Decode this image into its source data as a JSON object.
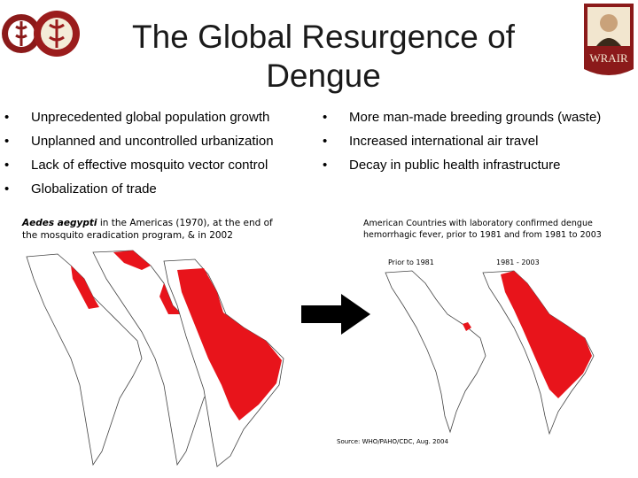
{
  "slide": {
    "title": "The Global Resurgence of Dengue",
    "logo_right_text": "WRAIR"
  },
  "bullets_left": [
    "Unprecedented global population growth",
    "Unplanned and uncontrolled urbanization",
    "Lack of effective mosquito vector control",
    "Globalization of trade"
  ],
  "bullets_right": [
    "More man-made breeding grounds (waste)",
    "Increased international air travel",
    "Decay in public health infrastructure"
  ],
  "bullet_symbol": "•",
  "left_figure": {
    "caption_italic": "Aedes aegypti",
    "caption_rest": " in the Americas (1970), at the end of the mosquito eradication program, & in 2002"
  },
  "right_figure": {
    "title": "American Countries with laboratory confirmed dengue hemorrhagic fever, prior to 1981 and from 1981 to 2003",
    "label_prior": "Prior to 1981",
    "label_from": "1981 - 2003",
    "source": "Source: WHO/PAHO/CDC, Aug. 2004"
  },
  "colors": {
    "map_fill": "#e8141b",
    "map_outline": "#444444",
    "arrow": "#000000"
  }
}
